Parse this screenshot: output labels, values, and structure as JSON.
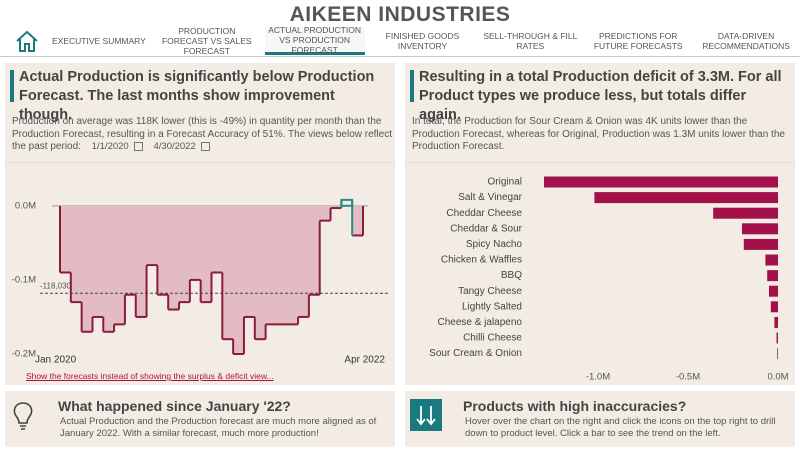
{
  "header": {
    "title": "AIKEEN INDUSTRIES"
  },
  "nav": {
    "tabs": [
      "EXECUTIVE SUMMARY",
      "PRODUCTION FORECAST VS SALES FORECAST",
      "ACTUAL PRODUCTION VS PRODUCTION FORECAST",
      "FINISHED GOODS INVENTORY",
      "SELL-THROUGH & FILL RATES",
      "PREDICTIONS FOR FUTURE FORECASTS",
      "DATA-DRIVEN RECOMMENDATIONS"
    ],
    "active": 2
  },
  "left_panel": {
    "title": "Actual Production is significantly below Production Forecast. The last months show improvement though.",
    "text": "Production on average was 118K lower (this is -49%) in quantity per month than the Production Forecast, resulting in a Forecast Accuracy of 51%. The views below reflect the past period:",
    "start_date": "1/1/2020",
    "end_date": "4/30/2022",
    "link": "Show the forecasts instead of showing the surplus & deficit view..."
  },
  "right_panel": {
    "title": "Resulting in a total Production deficit of 3.3M. For all Product types we produce less, but totals differ again.",
    "text": "In total, the Production for Sour Cream & Onion was 4K units lower than the Production Forecast, whereas for Original, Production was 1.3M units lower than the Production Forecast."
  },
  "bottom_left": {
    "title": "What happened since January '22?",
    "text": "Actual Production and the Production forecast are much more aligned as of January 2022. With a similar forecast, much more production!"
  },
  "bottom_right": {
    "title": "Products with high inaccuracies?",
    "text": "Hover over the chart on the right and click the icons on the top right to drill down to product level. Click a bar to see the trend on the left."
  },
  "chart_data": [
    {
      "type": "step",
      "categories": [
        "Jan 2020",
        null,
        null,
        null,
        null,
        null,
        null,
        null,
        null,
        null,
        null,
        null,
        null,
        null,
        null,
        null,
        null,
        null,
        null,
        null,
        null,
        null,
        null,
        null,
        null,
        null,
        null,
        "Apr 2022"
      ],
      "values": [
        -0.09,
        -0.13,
        -0.17,
        -0.15,
        -0.17,
        -0.16,
        -0.12,
        -0.15,
        -0.08,
        -0.12,
        -0.14,
        -0.13,
        -0.1,
        -0.13,
        -0.09,
        -0.18,
        -0.2,
        -0.15,
        -0.18,
        -0.16,
        -0.16,
        -0.16,
        -0.15,
        -0.12,
        -0.02,
        -0.003,
        0.008,
        -0.04
      ],
      "color": "#8b1a3f",
      "positive_color": "#2a8a8a",
      "fill": "#e3bcc3",
      "ylim": [
        -0.205,
        0.02
      ],
      "yticks": [
        {
          "value": 0,
          "label": "0.0M"
        },
        {
          "value": -0.1,
          "label": "-0.1M"
        },
        {
          "value": -0.2,
          "label": "-0.2M"
        }
      ],
      "reference": {
        "value": -0.11803,
        "label": "-118,030"
      }
    },
    {
      "type": "hbar",
      "categories": [
        "Original",
        "Salt & Vinegar",
        "Cheddar Cheese",
        "Cheddar & Sour",
        "Spicy Nacho",
        "Chicken & Waffles",
        "BBQ",
        "Tangy Cheese",
        "Lightly Salted",
        "Cheese & jalapeno",
        "Chilli Cheese",
        "Sour Cream & Onion"
      ],
      "values": [
        -1.3,
        -1.02,
        -0.36,
        -0.2,
        -0.19,
        -0.07,
        -0.06,
        -0.05,
        -0.04,
        -0.02,
        -0.008,
        -0.004
      ],
      "color": "#a3104a",
      "xlim": [
        -1.35,
        0
      ],
      "xticks": [
        {
          "value": -1,
          "label": "-1.0M"
        },
        {
          "value": -0.5,
          "label": "-0.5M"
        },
        {
          "value": 0,
          "label": "0.0M"
        }
      ]
    }
  ]
}
